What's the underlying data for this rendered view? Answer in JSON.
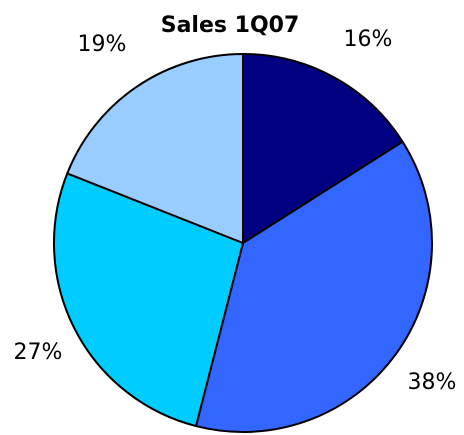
{
  "chart_data": {
    "type": "pie",
    "title": "Sales 1Q07",
    "start": "12 o'clock",
    "direction": "clockwise",
    "slices": [
      {
        "value": 16,
        "label": "16%",
        "color": "#000080"
      },
      {
        "value": 38,
        "label": "38%",
        "color": "#3366ff"
      },
      {
        "value": 27,
        "label": "27%",
        "color": "#00ccff"
      },
      {
        "value": 19,
        "label": "19%",
        "color": "#99ccff"
      }
    ],
    "border_color": "#000000"
  }
}
